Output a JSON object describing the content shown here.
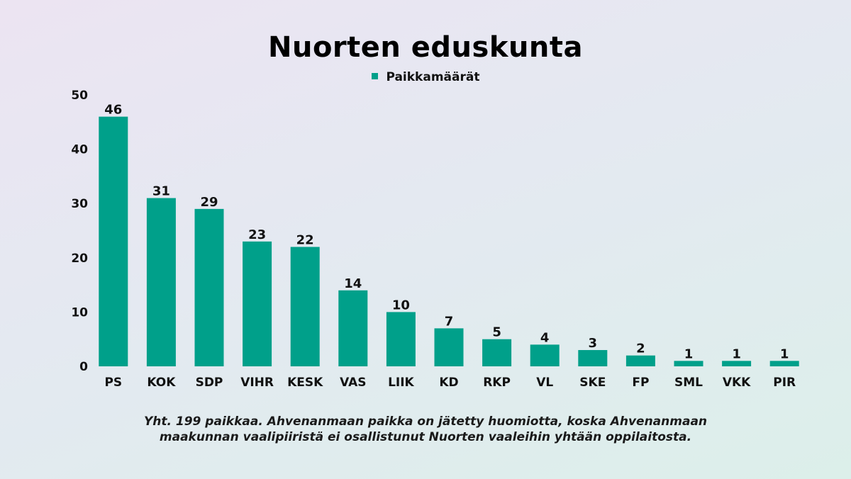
{
  "chart_data": {
    "type": "bar",
    "title": "Nuorten eduskunta",
    "xlabel": "",
    "ylabel": "",
    "ylim": [
      0,
      50
    ],
    "yticks": [
      0,
      10,
      20,
      30,
      40,
      50
    ],
    "grid": false,
    "legend_position": "top-center",
    "categories": [
      "PS",
      "KOK",
      "SDP",
      "VIHR",
      "KESK",
      "VAS",
      "LIIK",
      "KD",
      "RKP",
      "VL",
      "SKE",
      "FP",
      "SML",
      "VKK",
      "PIR"
    ],
    "series": [
      {
        "name": "Paikkamäärät",
        "color": "#00a08a",
        "values": [
          46,
          31,
          29,
          23,
          22,
          14,
          10,
          7,
          5,
          4,
          3,
          2,
          1,
          1,
          1
        ]
      }
    ]
  },
  "footnote": {
    "line1": "Yht. 199 paikkaa. Ahvenanmaan paikka on jätetty huomiotta,  koska Ahvenanmaan",
    "line2": "maakunnan vaalipiiristä ei osallistunut Nuorten vaaleihin yhtään oppilaitosta."
  }
}
